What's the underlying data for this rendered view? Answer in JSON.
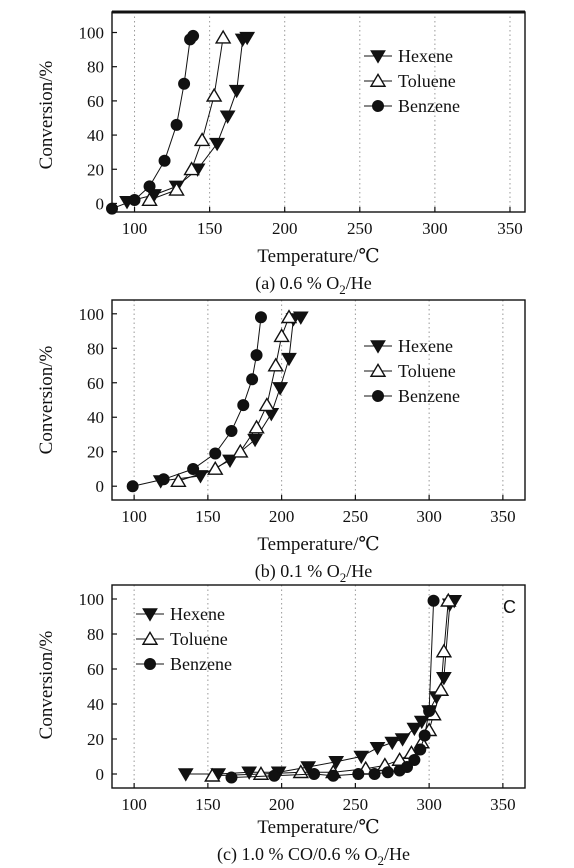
{
  "figure": {
    "captions": [
      "(a) 0.6 % O",
      "(b) 0.1 % O",
      "(c) 1.0 % CO/0.6 % O"
    ],
    "caption_subscript": "2",
    "caption_suffix": "/He"
  },
  "chart_data": [
    {
      "type": "line",
      "panel": "(a)",
      "xlabel": "Temperature/℃",
      "ylabel": "Conversion/%",
      "xlim": [
        85,
        360
      ],
      "ylim": [
        -5,
        112
      ],
      "xticks": [
        100,
        150,
        200,
        250,
        300,
        350
      ],
      "yticks": [
        0,
        20,
        40,
        60,
        80,
        100
      ],
      "grid": "vertical dotted",
      "legend_position": "top-right",
      "series": [
        {
          "name": "Hexene",
          "marker": "triangle-down",
          "points": [
            [
              95,
              1
            ],
            [
              113,
              5
            ],
            [
              128,
              10
            ],
            [
              142,
              20
            ],
            [
              155,
              35
            ],
            [
              162,
              51
            ],
            [
              168,
              66
            ],
            [
              172,
              96
            ],
            [
              175,
              97
            ]
          ]
        },
        {
          "name": "Toluene",
          "marker": "triangle-up",
          "points": [
            [
              110,
              2
            ],
            [
              128,
              8
            ],
            [
              138,
              20
            ],
            [
              145,
              37
            ],
            [
              153,
              63
            ],
            [
              159,
              97
            ]
          ]
        },
        {
          "name": "Benzene",
          "marker": "circle",
          "points": [
            [
              85,
              -3
            ],
            [
              100,
              2
            ],
            [
              110,
              10
            ],
            [
              120,
              25
            ],
            [
              128,
              46
            ],
            [
              133,
              70
            ],
            [
              137,
              96
            ],
            [
              139,
              98
            ]
          ]
        }
      ]
    },
    {
      "type": "line",
      "panel": "(b)",
      "xlabel": "Temperature/℃",
      "ylabel": "Conversion/%",
      "xlim": [
        85,
        365
      ],
      "ylim": [
        -8,
        108
      ],
      "xticks": [
        100,
        150,
        200,
        250,
        300,
        350
      ],
      "yticks": [
        0,
        20,
        40,
        60,
        80,
        100
      ],
      "grid": "vertical dotted",
      "legend_position": "top-right",
      "series": [
        {
          "name": "Hexene",
          "marker": "triangle-down",
          "points": [
            [
              118,
              3
            ],
            [
              145,
              6
            ],
            [
              165,
              15
            ],
            [
              182,
              27
            ],
            [
              193,
              42
            ],
            [
              199,
              57
            ],
            [
              205,
              74
            ],
            [
              208,
              97
            ],
            [
              213,
              98
            ]
          ]
        },
        {
          "name": "Toluene",
          "marker": "triangle-up",
          "points": [
            [
              130,
              3
            ],
            [
              155,
              10
            ],
            [
              172,
              20
            ],
            [
              183,
              34
            ],
            [
              190,
              47
            ],
            [
              196,
              70
            ],
            [
              200,
              87
            ],
            [
              205,
              98
            ]
          ]
        },
        {
          "name": "Benzene",
          "marker": "circle",
          "points": [
            [
              99,
              0
            ],
            [
              120,
              4
            ],
            [
              140,
              10
            ],
            [
              155,
              19
            ],
            [
              166,
              32
            ],
            [
              174,
              47
            ],
            [
              180,
              62
            ],
            [
              183,
              76
            ],
            [
              186,
              98
            ]
          ]
        }
      ]
    },
    {
      "type": "line",
      "panel": "(c)",
      "xlabel": "Temperature/℃",
      "ylabel": "Conversion/%",
      "xlim": [
        85,
        365
      ],
      "ylim": [
        -8,
        108
      ],
      "xticks": [
        100,
        150,
        200,
        250,
        300,
        350
      ],
      "yticks": [
        0,
        20,
        40,
        60,
        80,
        100
      ],
      "grid": "vertical dotted",
      "legend_position": "top-left",
      "corner_label": "C",
      "series": [
        {
          "name": "Hexene",
          "marker": "triangle-down",
          "points": [
            [
              135,
              0
            ],
            [
              157,
              0
            ],
            [
              178,
              1
            ],
            [
              198,
              1
            ],
            [
              218,
              4
            ],
            [
              237,
              7
            ],
            [
              254,
              10
            ],
            [
              265,
              15
            ],
            [
              275,
              18
            ],
            [
              282,
              20
            ],
            [
              290,
              26
            ],
            [
              295,
              30
            ],
            [
              300,
              36
            ],
            [
              305,
              44
            ],
            [
              310,
              55
            ],
            [
              314,
              97
            ],
            [
              317,
              99
            ]
          ]
        },
        {
          "name": "Toluene",
          "marker": "triangle-up",
          "points": [
            [
              153,
              -1
            ],
            [
              186,
              0
            ],
            [
              213,
              1
            ],
            [
              235,
              1
            ],
            [
              257,
              3
            ],
            [
              270,
              5
            ],
            [
              280,
              8
            ],
            [
              288,
              12
            ],
            [
              295,
              18
            ],
            [
              300,
              25
            ],
            [
              303,
              34
            ],
            [
              308,
              48
            ],
            [
              310,
              70
            ],
            [
              313,
              99
            ]
          ]
        },
        {
          "name": "Benzene",
          "marker": "circle",
          "points": [
            [
              166,
              -2
            ],
            [
              195,
              -1
            ],
            [
              222,
              0
            ],
            [
              235,
              -1
            ],
            [
              252,
              0
            ],
            [
              263,
              0
            ],
            [
              272,
              1
            ],
            [
              280,
              2
            ],
            [
              285,
              4
            ],
            [
              290,
              8
            ],
            [
              294,
              14
            ],
            [
              297,
              22
            ],
            [
              300,
              36
            ],
            [
              303,
              99
            ]
          ]
        }
      ]
    }
  ]
}
